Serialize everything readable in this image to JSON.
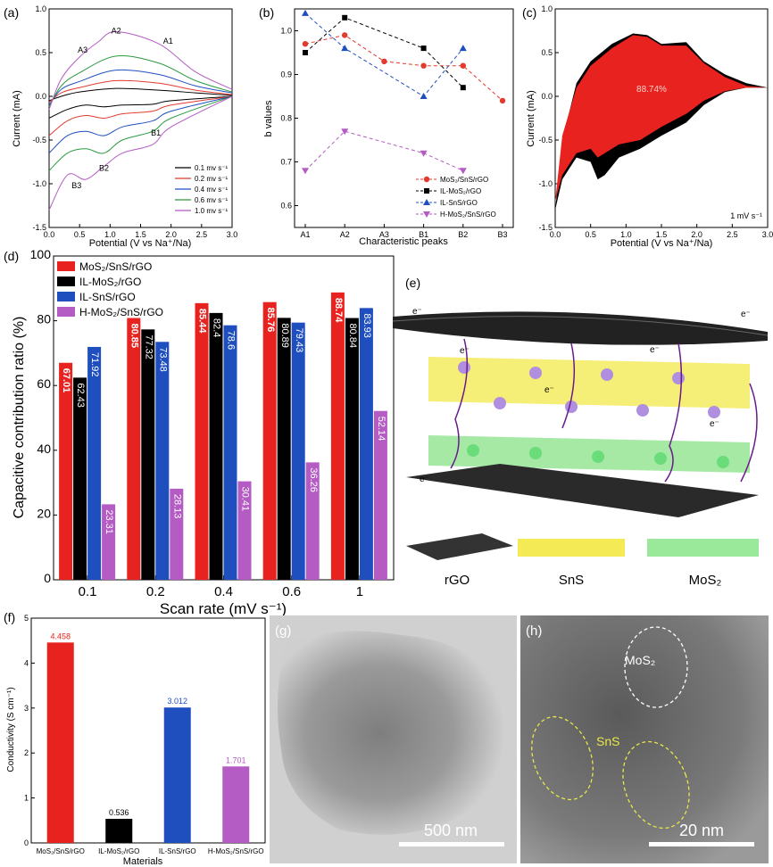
{
  "chart_data": [
    {
      "panel": "(a)",
      "type": "line",
      "xlabel": "Potential (V vs Na⁺/Na)",
      "ylabel": "Current (mA)",
      "xlim": [
        0.0,
        3.0
      ],
      "ylim": [
        -1.5,
        1.0
      ],
      "xticks": [
        "0.0",
        "0.5",
        "1.0",
        "1.5",
        "2.0",
        "2.5",
        "3.0"
      ],
      "yticks": [
        "-1.5",
        "-1.0",
        "-0.5",
        "0.0",
        "0.5",
        "1.0"
      ],
      "legend_position": "bottom-right",
      "series": [
        {
          "name": "0.1 mv s⁻¹",
          "color": "#000000",
          "anodic": [
            [
              0.0,
              -0.05
            ],
            [
              0.2,
              0.0
            ],
            [
              0.5,
              0.05
            ],
            [
              1.1,
              0.09
            ],
            [
              1.8,
              0.07
            ],
            [
              2.4,
              0.04
            ],
            [
              3.0,
              0.01
            ]
          ],
          "cathodic": [
            [
              3.0,
              0.0
            ],
            [
              2.0,
              -0.05
            ],
            [
              1.7,
              -0.09
            ],
            [
              1.2,
              -0.1
            ],
            [
              0.9,
              -0.12
            ],
            [
              0.6,
              -0.1
            ],
            [
              0.3,
              -0.15
            ],
            [
              0.0,
              -0.25
            ]
          ]
        },
        {
          "name": "0.2 mv s⁻¹",
          "color": "#e23a2d",
          "anodic": [
            [
              0.0,
              -0.07
            ],
            [
              0.2,
              0.04
            ],
            [
              0.5,
              0.1
            ],
            [
              1.1,
              0.18
            ],
            [
              1.8,
              0.15
            ],
            [
              2.4,
              0.07
            ],
            [
              3.0,
              0.02
            ]
          ],
          "cathodic": [
            [
              3.0,
              0.0
            ],
            [
              2.0,
              -0.1
            ],
            [
              1.7,
              -0.17
            ],
            [
              1.2,
              -0.2
            ],
            [
              0.9,
              -0.25
            ],
            [
              0.6,
              -0.22
            ],
            [
              0.3,
              -0.28
            ],
            [
              0.0,
              -0.45
            ]
          ]
        },
        {
          "name": "0.4 mv s⁻¹",
          "color": "#1f4fbf",
          "anodic": [
            [
              0.0,
              -0.1
            ],
            [
              0.2,
              0.08
            ],
            [
              0.5,
              0.17
            ],
            [
              1.1,
              0.3
            ],
            [
              1.8,
              0.25
            ],
            [
              2.4,
              0.12
            ],
            [
              3.0,
              0.04
            ]
          ],
          "cathodic": [
            [
              3.0,
              0.0
            ],
            [
              2.0,
              -0.17
            ],
            [
              1.7,
              -0.28
            ],
            [
              1.2,
              -0.35
            ],
            [
              0.9,
              -0.45
            ],
            [
              0.6,
              -0.4
            ],
            [
              0.3,
              -0.45
            ],
            [
              0.0,
              -0.65
            ]
          ]
        },
        {
          "name": "0.6 mv s⁻¹",
          "color": "#2a9a3f",
          "anodic": [
            [
              0.0,
              -0.12
            ],
            [
              0.2,
              0.12
            ],
            [
              0.5,
              0.27
            ],
            [
              1.1,
              0.46
            ],
            [
              1.8,
              0.38
            ],
            [
              2.4,
              0.18
            ],
            [
              3.0,
              0.05
            ]
          ],
          "cathodic": [
            [
              3.0,
              0.0
            ],
            [
              2.0,
              -0.25
            ],
            [
              1.7,
              -0.4
            ],
            [
              1.2,
              -0.5
            ],
            [
              0.9,
              -0.65
            ],
            [
              0.6,
              -0.6
            ],
            [
              0.3,
              -0.65
            ],
            [
              0.0,
              -0.85
            ]
          ]
        },
        {
          "name": "1.0 mv s⁻¹",
          "color": "#b45bc4",
          "anodic": [
            [
              0.0,
              -0.15
            ],
            [
              0.2,
              0.2
            ],
            [
              0.5,
              0.45
            ],
            [
              0.8,
              0.62
            ],
            [
              1.1,
              0.74
            ],
            [
              1.8,
              0.6
            ],
            [
              2.4,
              0.28
            ],
            [
              3.0,
              0.08
            ]
          ],
          "cathodic": [
            [
              3.0,
              0.0
            ],
            [
              2.0,
              -0.35
            ],
            [
              1.7,
              -0.55
            ],
            [
              1.2,
              -0.65
            ],
            [
              0.9,
              -0.8
            ],
            [
              0.6,
              -0.95
            ],
            [
              0.3,
              -0.9
            ],
            [
              0.0,
              -1.3
            ]
          ]
        }
      ],
      "annotations": [
        {
          "text": "A1",
          "x": 1.95,
          "y": 0.6
        },
        {
          "text": "A2",
          "x": 1.1,
          "y": 0.72
        },
        {
          "text": "A3",
          "x": 0.55,
          "y": 0.5
        },
        {
          "text": "B1",
          "x": 1.75,
          "y": -0.45
        },
        {
          "text": "B2",
          "x": 0.9,
          "y": -0.85
        },
        {
          "text": "B3",
          "x": 0.45,
          "y": -1.05
        }
      ]
    },
    {
      "panel": "(b)",
      "type": "scatter",
      "xlabel": "Characteristic peaks",
      "ylabel": "b values",
      "categories": [
        "A1",
        "A2",
        "A3",
        "B1",
        "B2",
        "B3"
      ],
      "ylim": [
        0.55,
        1.05
      ],
      "yticks": [
        "0.6",
        "0.7",
        "0.8",
        "0.9",
        "1.0"
      ],
      "legend_position": "bottom-right",
      "series": [
        {
          "name": "MoS₂/SnS/rGO",
          "color": "#e23a2d",
          "marker": "circle",
          "values": [
            0.97,
            0.99,
            0.93,
            0.92,
            0.92,
            0.84
          ]
        },
        {
          "name": "IL-MoS₂/rGO",
          "color": "#000000",
          "marker": "square",
          "values": [
            0.95,
            1.03,
            null,
            0.96,
            0.87,
            null
          ]
        },
        {
          "name": "IL-SnS/rGO",
          "color": "#1f4fbf",
          "marker": "triangle-up",
          "values": [
            1.04,
            0.96,
            null,
            0.85,
            0.96,
            null
          ]
        },
        {
          "name": "H-MoS₂/SnS/rGO",
          "color": "#b45bc4",
          "marker": "triangle-down",
          "values": [
            0.68,
            0.77,
            null,
            0.72,
            0.68,
            null
          ]
        }
      ]
    },
    {
      "panel": "(c)",
      "type": "area",
      "xlabel": "Potential (V vs Na⁺/Na)",
      "ylabel": "Current (mA)",
      "xlim": [
        0.0,
        3.0
      ],
      "ylim": [
        -1.5,
        1.0
      ],
      "xticks": [
        "0.0",
        "0.5",
        "1.0",
        "1.5",
        "2.0",
        "2.5",
        "3.0"
      ],
      "yticks": [
        "-1.5",
        "-1.0",
        "-0.5",
        "0.0",
        "0.5",
        "1.0"
      ],
      "percent_label": "88.74%",
      "rate_label": "1 mV s⁻¹",
      "total_color": "#000000",
      "capacitive_color": "#e8231f",
      "total_upper": [
        [
          0.0,
          -1.3
        ],
        [
          0.1,
          -0.5
        ],
        [
          0.3,
          0.15
        ],
        [
          0.5,
          0.4
        ],
        [
          0.8,
          0.6
        ],
        [
          1.1,
          0.72
        ],
        [
          1.3,
          0.7
        ],
        [
          1.5,
          0.6
        ],
        [
          1.85,
          0.62
        ],
        [
          2.1,
          0.4
        ],
        [
          2.4,
          0.25
        ],
        [
          2.7,
          0.15
        ],
        [
          3.0,
          0.1
        ]
      ],
      "total_lower": [
        [
          3.0,
          0.1
        ],
        [
          2.7,
          0.1
        ],
        [
          2.4,
          0.05
        ],
        [
          2.1,
          -0.1
        ],
        [
          1.85,
          -0.3
        ],
        [
          1.5,
          -0.45
        ],
        [
          1.2,
          -0.6
        ],
        [
          0.9,
          -0.7
        ],
        [
          0.7,
          -0.9
        ],
        [
          0.6,
          -0.95
        ],
        [
          0.5,
          -0.75
        ],
        [
          0.3,
          -0.7
        ],
        [
          0.1,
          -0.95
        ],
        [
          0.0,
          -1.3
        ]
      ],
      "capacitive_upper": [
        [
          0.0,
          -1.2
        ],
        [
          0.1,
          -0.45
        ],
        [
          0.3,
          0.1
        ],
        [
          0.5,
          0.35
        ],
        [
          0.8,
          0.55
        ],
        [
          1.1,
          0.7
        ],
        [
          1.3,
          0.68
        ],
        [
          1.5,
          0.58
        ],
        [
          1.85,
          0.58
        ],
        [
          2.1,
          0.38
        ],
        [
          2.4,
          0.22
        ],
        [
          2.7,
          0.12
        ],
        [
          3.0,
          0.1
        ]
      ],
      "capacitive_lower": [
        [
          3.0,
          0.1
        ],
        [
          2.7,
          0.1
        ],
        [
          2.4,
          0.06
        ],
        [
          2.1,
          -0.05
        ],
        [
          1.85,
          -0.2
        ],
        [
          1.5,
          -0.35
        ],
        [
          1.2,
          -0.5
        ],
        [
          0.9,
          -0.55
        ],
        [
          0.7,
          -0.65
        ],
        [
          0.6,
          -0.7
        ],
        [
          0.5,
          -0.6
        ],
        [
          0.3,
          -0.65
        ],
        [
          0.1,
          -0.9
        ],
        [
          0.0,
          -1.2
        ]
      ]
    },
    {
      "panel": "(d)",
      "type": "bar",
      "xlabel": "Scan rate (mV s⁻¹)",
      "ylabel": "Capacitive contribution ratio (%)",
      "ylim": [
        0,
        100
      ],
      "yticks": [
        "0",
        "20",
        "40",
        "60",
        "80",
        "100"
      ],
      "categories": [
        "0.1",
        "0.2",
        "0.4",
        "0.6",
        "1"
      ],
      "legend_position": "top-left",
      "series": [
        {
          "name": "MoS₂/SnS/rGO",
          "color": "#e8231f",
          "values": [
            67.01,
            80.85,
            85.44,
            85.76,
            88.74
          ],
          "labels": [
            "67.01",
            "80.85",
            "85.44",
            "85.76",
            "88.74"
          ]
        },
        {
          "name": "IL-MoS₂/rGO",
          "color": "#000000",
          "values": [
            62.43,
            77.32,
            82.4,
            80.89,
            80.84
          ],
          "labels": [
            "62.43",
            "77.32",
            "82.4",
            "80.89",
            "80.84"
          ]
        },
        {
          "name": "IL-SnS/rGO",
          "color": "#1f4fbf",
          "values": [
            71.92,
            73.48,
            78.6,
            79.43,
            83.93
          ],
          "labels": [
            "71.92",
            "73.48",
            "78.6",
            "79.43",
            "83.93"
          ]
        },
        {
          "name": "H-MoS₂/SnS/rGO",
          "color": "#b45bc4",
          "values": [
            23.31,
            28.13,
            30.41,
            36.26,
            52.14
          ],
          "labels": [
            "23.31",
            "28.13",
            "30.41",
            "36.26",
            "52.14"
          ]
        }
      ]
    },
    {
      "panel": "(f)",
      "type": "bar",
      "xlabel": "Materials",
      "ylabel": "Conductivity (S cm⁻¹)",
      "ylim": [
        0,
        5
      ],
      "yticks": [
        "0",
        "1",
        "2",
        "3",
        "4",
        "5"
      ],
      "categories": [
        "MoS₂/SnS/rGO",
        "IL-MoS₂/rGO",
        "IL-SnS/rGO",
        "H-MoS₂/SnS/rGO"
      ],
      "values": [
        4.458,
        0.536,
        3.012,
        1.701
      ],
      "labels": [
        "4.458",
        "0.536",
        "3.012",
        "1.701"
      ],
      "colors": [
        "#e8231f",
        "#000000",
        "#1f4fbf",
        "#b45bc4"
      ]
    }
  ],
  "schematic": {
    "panel": "(e)",
    "electron": "e⁻",
    "legend": [
      "rGO",
      "SnS",
      "MoS₂"
    ]
  },
  "micrographs": [
    {
      "panel": "(g)",
      "scale": "500 nm"
    },
    {
      "panel": "(h)",
      "scale": "20 nm",
      "labels": [
        "MoS₂",
        "SnS"
      ]
    }
  ]
}
